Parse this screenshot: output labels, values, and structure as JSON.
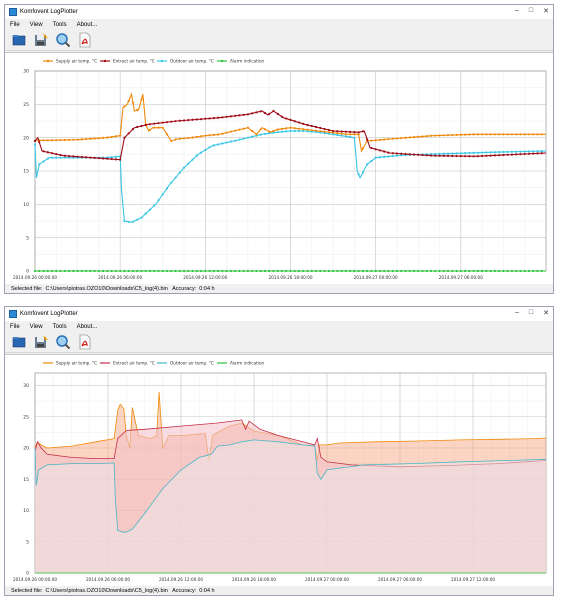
{
  "windows": [
    {
      "title": "Komfovent LogPlotter",
      "menu": [
        "File",
        "View",
        "Tools",
        "About..."
      ],
      "status": "Selected file:  C:\\Users\\piotras.OZO10\\Downloads\\C5_log(4).bin   Accuracy:  0:04 h",
      "chart_style": "lines-markers"
    },
    {
      "title": "Komfovent LogPlotter",
      "menu": [
        "File",
        "View",
        "Tools",
        "About..."
      ],
      "status": "Selected file:  C:\\Users\\piotras.OZO10\\Downloads\\C5_log(4).bin   Accuracy:  0:04 h",
      "chart_style": "area"
    }
  ],
  "toolbar_icons": [
    "open-folder-icon",
    "save-icon",
    "zoom-icon",
    "pdf-export-icon"
  ],
  "chart_data": [
    {
      "type": "line",
      "title": "",
      "xlabel": "",
      "ylabel": "",
      "ylim": [
        0,
        30
      ],
      "yticks": [
        0,
        5,
        10,
        15,
        20,
        25,
        30
      ],
      "x_tick_labels": [
        "2014.09.26 00:00:00",
        "2014.09.26 06:00:00",
        "2014.09.26 12:00:00",
        "2014.09.26 18:00:00",
        "2014.09.27 00:00:00",
        "2014.09.27 06:00:00"
      ],
      "x_hours": [
        0,
        36
      ],
      "grid": true,
      "legend_position": "top-center",
      "series": [
        {
          "name": "Supply air temp. °C",
          "color": "#f0890a",
          "x": [
            0,
            0.1,
            1,
            3,
            5,
            6,
            6.2,
            6.5,
            6.8,
            7,
            7.3,
            7.6,
            7.8,
            8,
            8.3,
            9,
            9.6,
            10,
            11,
            12,
            13,
            14,
            15,
            15.6,
            16,
            16.6,
            17,
            18,
            20,
            22,
            22.8,
            23,
            23.4,
            25,
            28,
            31,
            34,
            36
          ],
          "y": [
            19.5,
            19.6,
            19.6,
            19.7,
            20,
            20.3,
            24.5,
            25,
            26.5,
            24,
            24.2,
            26.5,
            22,
            21,
            21.5,
            21.5,
            19.5,
            19.8,
            20,
            20.3,
            20.5,
            21,
            21.5,
            20.5,
            21.5,
            20.8,
            21.2,
            21.5,
            21,
            20.5,
            20.5,
            18,
            19.5,
            19.8,
            20.3,
            20.5,
            20.5,
            20.5
          ]
        },
        {
          "name": "Extract air temp. °C",
          "color": "#a00c18",
          "x": [
            0,
            0.2,
            0.5,
            2,
            4,
            6,
            6.3,
            7,
            8,
            10,
            13,
            15,
            16,
            16.4,
            16.8,
            17.5,
            19,
            21,
            22.8,
            23.2,
            23.6,
            25,
            28,
            31,
            34,
            36
          ],
          "y": [
            19.5,
            20,
            18,
            17.3,
            17,
            16.7,
            20,
            21.5,
            22,
            22.5,
            23,
            23.5,
            24,
            23.4,
            24,
            23,
            22,
            21,
            20.8,
            21,
            18.5,
            17.7,
            17.3,
            17.2,
            17.5,
            17.7
          ]
        },
        {
          "name": "Outdoor air temp. °C",
          "color": "#38c6e6",
          "x": [
            0,
            0.1,
            0.3,
            1,
            3,
            5,
            6,
            6.1,
            6.3,
            6.8,
            7.5,
            8.5,
            9.5,
            10.5,
            11.5,
            12.5,
            14,
            15,
            16,
            17,
            18,
            19,
            20,
            21,
            22.5,
            22.7,
            22.9,
            23.4,
            24,
            26,
            29,
            32,
            36
          ],
          "y": [
            19,
            14,
            16,
            17,
            17,
            17,
            17.2,
            12,
            7.5,
            7.3,
            8,
            10,
            13,
            15.5,
            17.5,
            18.8,
            19.5,
            20,
            20.5,
            20.8,
            21,
            21,
            20.8,
            20.5,
            20,
            15,
            14,
            16,
            17,
            17.4,
            17.6,
            17.8,
            18
          ]
        },
        {
          "name": "Alarm indication",
          "color": "#2cc43a",
          "x": [
            0,
            36
          ],
          "y": [
            0,
            0
          ]
        }
      ]
    },
    {
      "type": "area",
      "title": "",
      "xlabel": "",
      "ylabel": "",
      "ylim": [
        0,
        32
      ],
      "yticks": [
        0,
        5,
        10,
        15,
        20,
        25,
        30
      ],
      "x_tick_labels": [
        "2014.09.26 00:00:00",
        "2014.09.26 06:00:00",
        "2014.09.26 12:00:00",
        "2014.09.26 18:00:00",
        "2014.09.27 00:00:00",
        "2014.09.27 06:00:00",
        "2014.09.27 12:00:00"
      ],
      "x_hours": [
        0,
        42
      ],
      "grid": true,
      "legend_position": "top-center",
      "series": [
        {
          "name": "Supply air temp. °C",
          "color": "#f0890a",
          "x": [
            0,
            0.2,
            0.5,
            1,
            3,
            5,
            6.5,
            6.8,
            7,
            7.3,
            7.5,
            7.8,
            8,
            8.5,
            9.5,
            10,
            10.2,
            10.5,
            11,
            12,
            14,
            14.3,
            14.6,
            15,
            16,
            17,
            18,
            20,
            22,
            23,
            23.2,
            23.4,
            24,
            25,
            28,
            31,
            35,
            38,
            41,
            42
          ],
          "y": [
            20,
            21,
            20.5,
            20,
            20.3,
            21,
            21.5,
            26,
            27,
            26.3,
            22,
            20,
            26.5,
            22,
            21.5,
            22,
            29,
            20,
            22,
            22,
            22.3,
            18,
            22,
            22.5,
            23.5,
            24,
            22.7,
            22,
            20.5,
            20.4,
            18,
            20.5,
            20.5,
            20.8,
            21,
            21.1,
            21.3,
            21.4,
            21.5,
            21.6
          ]
        },
        {
          "name": "Extract air temp. °C",
          "color": "#c42d47",
          "x": [
            0,
            0.2,
            0.5,
            1,
            3,
            5,
            6.5,
            6.8,
            7.5,
            9,
            12,
            15,
            17,
            17.3,
            17.6,
            18.5,
            20,
            22,
            23,
            23.2,
            23.5,
            24,
            26,
            30,
            34,
            38,
            42
          ],
          "y": [
            19.5,
            21,
            20,
            19,
            18.5,
            18.3,
            18.3,
            21.5,
            22.8,
            23,
            23.5,
            24,
            24.5,
            23,
            24.3,
            23,
            22,
            21,
            20.5,
            21.5,
            18.5,
            17.8,
            17.3,
            17,
            17.2,
            17.5,
            18
          ]
        },
        {
          "name": "Outdoor air temp. °C",
          "color": "#48b6c8",
          "x": [
            0,
            0.1,
            0.3,
            1,
            3,
            5,
            6.5,
            6.6,
            6.8,
            7.4,
            8,
            9,
            10.5,
            12,
            13.5,
            14.5,
            15,
            16,
            17,
            18,
            20,
            22,
            23,
            23.2,
            23.5,
            24,
            27,
            31,
            35,
            39,
            42
          ],
          "y": [
            20,
            14,
            16.5,
            17.3,
            17.5,
            17.5,
            17.6,
            12,
            6.8,
            6.5,
            7,
            9.5,
            13.5,
            16.5,
            18.5,
            19,
            20.3,
            20.5,
            21,
            21.3,
            21,
            20.5,
            20.3,
            16,
            15,
            16.5,
            17.3,
            17.5,
            17.8,
            18,
            18.2
          ]
        },
        {
          "name": "Alarm indication",
          "color": "#2cc43a",
          "x": [
            0,
            42
          ],
          "y": [
            0,
            0
          ]
        }
      ]
    }
  ]
}
